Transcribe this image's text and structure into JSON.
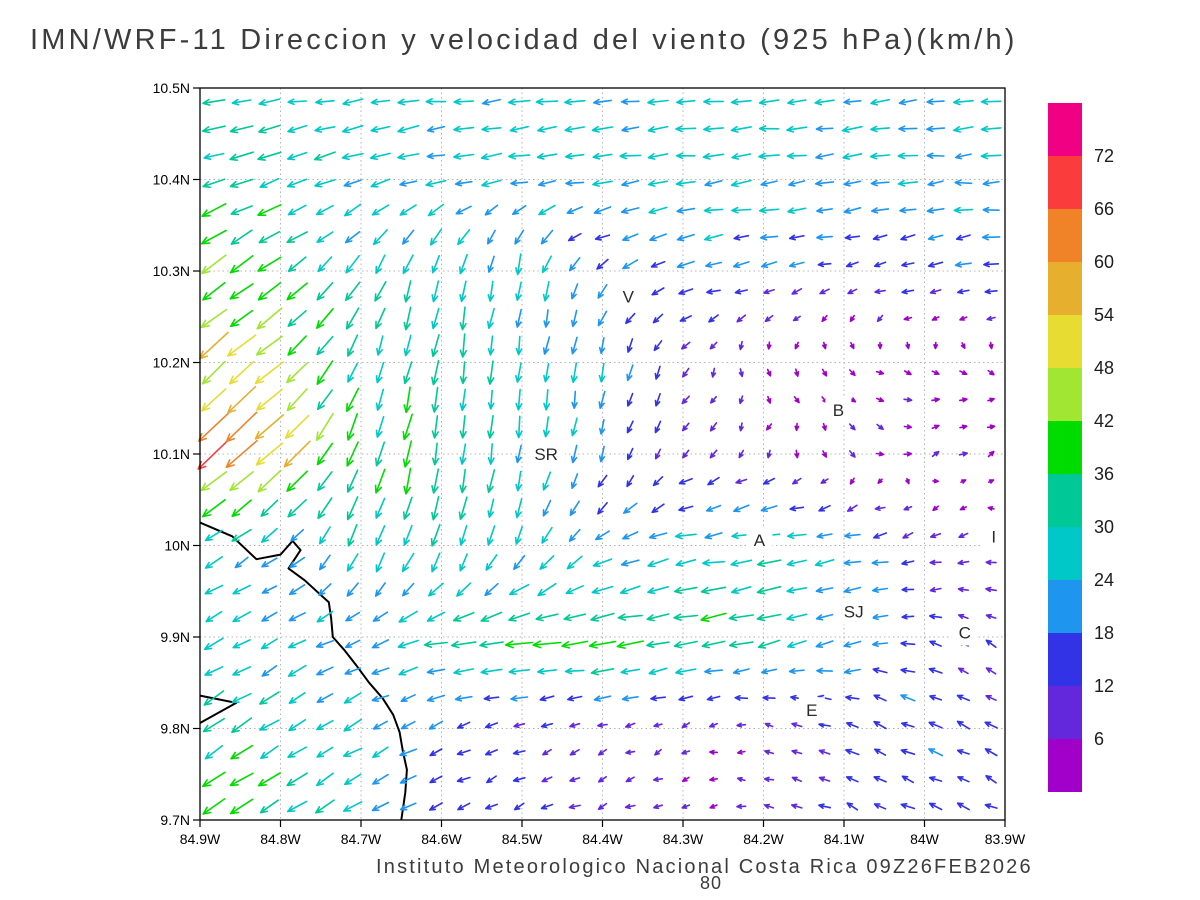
{
  "header": {
    "title": "IMN/WRF-11 Direccion y velocidad del viento (925 hPa)(km/h)"
  },
  "footer": {
    "credit": "Instituto Meteorologico Nacional Costa Rica 09Z26FEB2026",
    "stray_label": "80"
  },
  "chart_data": {
    "type": "quiver",
    "title": "IMN/WRF-11 Direccion y velocidad del viento (925 hPa)(km/h)",
    "model": "IMN/WRF-11",
    "variable": "Direccion y velocidad del viento",
    "pressure_level": "925 hPa",
    "units": "km/h",
    "valid_time": "09Z26FEB2026",
    "credit": "Instituto Meteorologico Nacional Costa Rica",
    "grid": true,
    "x_axis": {
      "range_deg": [
        -84.9,
        -83.9
      ],
      "tick_step_deg": 0.1,
      "ticks": [
        "84.9W",
        "84.8W",
        "84.7W",
        "84.6W",
        "84.5W",
        "84.4W",
        "84.3W",
        "84.2W",
        "84.1W",
        "84W",
        "83.9W"
      ]
    },
    "y_axis": {
      "range_deg": [
        9.7,
        10.5
      ],
      "tick_step_deg": 0.1,
      "ticks": [
        "10.5N",
        "10.4N",
        "10.3N",
        "10.2N",
        "10.1N",
        "10N",
        "9.9N",
        "9.8N",
        "9.7N"
      ]
    },
    "colorbar": {
      "position": "right",
      "levels": [
        6,
        12,
        18,
        24,
        30,
        36,
        42,
        48,
        54,
        60,
        66,
        72
      ],
      "colors": [
        "#a000c8",
        "#6428dc",
        "#3232e6",
        "#1e96f0",
        "#00c8c8",
        "#00c896",
        "#00dc00",
        "#a0e632",
        "#e6dc32",
        "#e6af2d",
        "#f08228",
        "#fa3c3c",
        "#f00082"
      ]
    },
    "wind_grid": {
      "comment": "Control grid of wind components [u,v] in km/h (u east+, v north+). Rows = lats descending, cols = lons ascending. Field estimated from arrow colors/directions.",
      "lons": [
        -84.9,
        -84.8,
        -84.7,
        -84.6,
        -84.5,
        -84.4,
        -84.3,
        -84.2,
        -84.1,
        -84.0,
        -83.9
      ],
      "lats": [
        10.5,
        10.4,
        10.3,
        10.2,
        10.1,
        10.0,
        9.9,
        9.8,
        9.7
      ],
      "uv": [
        [
          [
            -27,
            -3
          ],
          [
            -27,
            -3
          ],
          [
            -26,
            -3
          ],
          [
            -26,
            -2
          ],
          [
            -26,
            -2
          ],
          [
            -25,
            -2
          ],
          [
            -25,
            -2
          ],
          [
            -25,
            -2
          ],
          [
            -24,
            -2
          ],
          [
            -24,
            -2
          ],
          [
            -24,
            -2
          ]
        ],
        [
          [
            -32,
            -12
          ],
          [
            -30,
            -10
          ],
          [
            -26,
            -8
          ],
          [
            -24,
            -6
          ],
          [
            -25,
            -4
          ],
          [
            -26,
            -3
          ],
          [
            -25,
            -3
          ],
          [
            -24,
            -3
          ],
          [
            -23,
            -3
          ],
          [
            -23,
            -2
          ],
          [
            -23,
            -2
          ]
        ],
        [
          [
            -36,
            -26
          ],
          [
            -30,
            -22
          ],
          [
            -14,
            -22
          ],
          [
            -6,
            -26
          ],
          [
            -4,
            -26
          ],
          [
            -14,
            -12
          ],
          [
            -20,
            -5
          ],
          [
            -18,
            -3
          ],
          [
            -12,
            -3
          ],
          [
            -16,
            -3
          ],
          [
            -18,
            -3
          ]
        ],
        [
          [
            -42,
            -36
          ],
          [
            -36,
            -30
          ],
          [
            -12,
            -30
          ],
          [
            -5,
            -30
          ],
          [
            -3,
            -28
          ],
          [
            -4,
            -22
          ],
          [
            -5,
            -10
          ],
          [
            2,
            -5
          ],
          [
            4,
            -4
          ],
          [
            5,
            -3
          ],
          [
            4,
            -3
          ]
        ],
        [
          [
            -48,
            -42
          ],
          [
            -40,
            -38
          ],
          [
            -10,
            -36
          ],
          [
            -6,
            -33
          ],
          [
            -4,
            -26
          ],
          [
            -5,
            -18
          ],
          [
            -6,
            -8
          ],
          [
            -4,
            -6
          ],
          [
            5,
            -4
          ],
          [
            6,
            2
          ],
          [
            5,
            3
          ]
        ],
        [
          [
            -22,
            -15
          ],
          [
            -18,
            -12
          ],
          [
            -11,
            -26
          ],
          [
            -8,
            -30
          ],
          [
            -10,
            -24
          ],
          [
            -18,
            -12
          ],
          [
            -28,
            -5
          ],
          [
            -31,
            -3
          ],
          [
            -22,
            -4
          ],
          [
            -12,
            -4
          ],
          [
            -8,
            -3
          ]
        ],
        [
          [
            -23,
            -12
          ],
          [
            -21,
            -10
          ],
          [
            -19,
            -8
          ],
          [
            -31,
            -6
          ],
          [
            -37,
            -5
          ],
          [
            -41,
            -5
          ],
          [
            -35,
            -6
          ],
          [
            -30,
            -8
          ],
          [
            -22,
            -6
          ],
          [
            -12,
            4
          ],
          [
            -10,
            6
          ]
        ],
        [
          [
            -28,
            -18
          ],
          [
            -26,
            -16
          ],
          [
            -22,
            -12
          ],
          [
            -15,
            -6
          ],
          [
            -10,
            -4
          ],
          [
            -8,
            -3
          ],
          [
            -5,
            -3
          ],
          [
            -6,
            2
          ],
          [
            -14,
            6
          ],
          [
            -16,
            8
          ],
          [
            -12,
            6
          ]
        ],
        [
          [
            -31,
            -20
          ],
          [
            -29,
            -18
          ],
          [
            -24,
            -14
          ],
          [
            -16,
            -8
          ],
          [
            -12,
            -5
          ],
          [
            -10,
            -4
          ],
          [
            -6,
            -2
          ],
          [
            -8,
            3
          ],
          [
            -12,
            5
          ],
          [
            -14,
            6
          ],
          [
            -12,
            5
          ]
        ]
      ]
    },
    "station_labels": [
      {
        "text": "V",
        "lon": -84.368,
        "lat": 10.272
      },
      {
        "text": "B",
        "lon": -84.107,
        "lat": 10.148
      },
      {
        "text": "SR",
        "lon": -84.47,
        "lat": 10.1
      },
      {
        "text": "A",
        "lon": -84.205,
        "lat": 10.006
      },
      {
        "text": "SJ",
        "lon": -84.088,
        "lat": 9.928
      },
      {
        "text": "C",
        "lon": -83.95,
        "lat": 9.905
      },
      {
        "text": "E",
        "lon": -84.14,
        "lat": 9.82
      },
      {
        "text": "I",
        "lon": -83.914,
        "lat": 10.01
      }
    ],
    "coastlines": [
      [
        [
          -84.9,
          10.025
        ],
        [
          -84.86,
          10.01
        ],
        [
          -84.83,
          9.985
        ],
        [
          -84.8,
          9.99
        ],
        [
          -84.785,
          10.005
        ],
        [
          -84.775,
          9.995
        ],
        [
          -84.79,
          9.975
        ],
        [
          -84.77,
          9.962
        ],
        [
          -84.755,
          9.95
        ],
        [
          -84.74,
          9.938
        ],
        [
          -84.737,
          9.92
        ],
        [
          -84.735,
          9.9
        ],
        [
          -84.72,
          9.885
        ],
        [
          -84.705,
          9.868
        ],
        [
          -84.69,
          9.85
        ],
        [
          -84.673,
          9.833
        ],
        [
          -84.66,
          9.815
        ],
        [
          -84.652,
          9.796
        ],
        [
          -84.648,
          9.775
        ],
        [
          -84.643,
          9.755
        ],
        [
          -84.645,
          9.73
        ],
        [
          -84.65,
          9.7
        ]
      ],
      [
        [
          -84.9,
          9.836
        ],
        [
          -84.855,
          9.828
        ],
        [
          -84.9,
          9.806
        ]
      ]
    ]
  }
}
